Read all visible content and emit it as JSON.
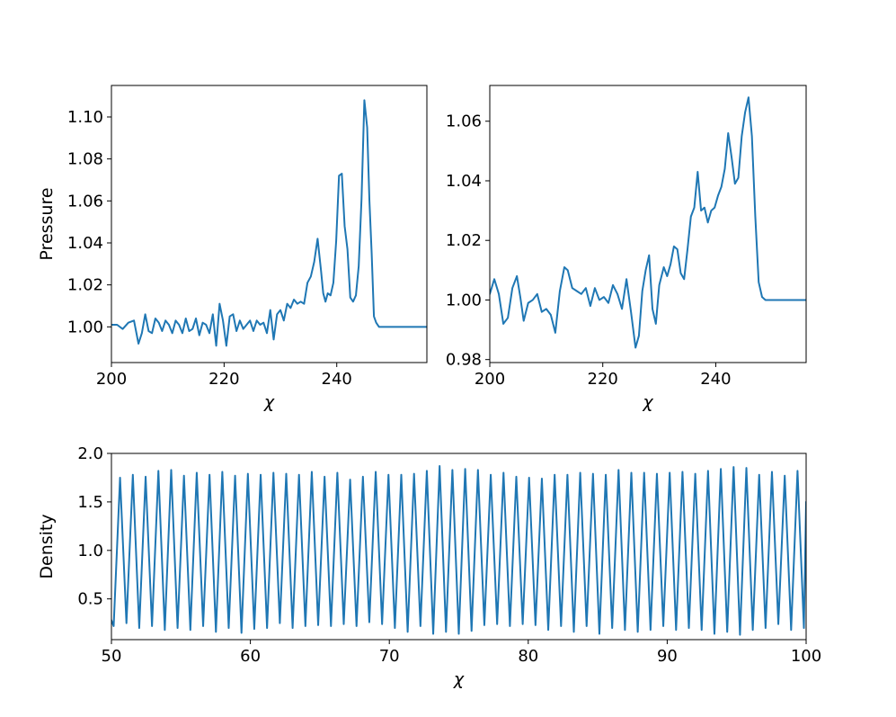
{
  "colors": {
    "series": "#1f77b4",
    "axes": "#000000",
    "background": "#ffffff"
  },
  "chart_data": [
    {
      "id": "top-left",
      "type": "line",
      "title": "",
      "xlabel": "χ",
      "ylabel": "Pressure",
      "xlim": [
        200,
        256
      ],
      "ylim": [
        0.983,
        1.115
      ],
      "xticks": [
        200,
        220,
        240
      ],
      "xtick_labels": [
        "200",
        "220",
        "240"
      ],
      "yticks": [
        1.0,
        1.02,
        1.04,
        1.06,
        1.08,
        1.1
      ],
      "ytick_labels": [
        "1.00",
        "1.02",
        "1.04",
        "1.06",
        "1.08",
        "1.10"
      ],
      "grid": false,
      "series": [
        {
          "x": [
            200,
            201,
            202,
            203,
            204,
            204.8,
            205.4,
            206,
            206.6,
            207.2,
            207.8,
            208.4,
            209,
            209.6,
            210.2,
            210.8,
            211.4,
            212,
            212.6,
            213.2,
            213.8,
            214.4,
            215,
            215.6,
            216.2,
            216.8,
            217.4,
            218,
            218.6,
            219.2,
            219.8,
            220.4,
            221,
            221.6,
            222.2,
            222.8,
            223.4,
            224,
            224.6,
            225.2,
            225.8,
            226.4,
            227,
            227.6,
            228.2,
            228.8,
            229.4,
            230,
            230.6,
            231.2,
            231.8,
            232.4,
            233,
            233.6,
            234.2,
            234.8,
            235.4,
            236,
            236.6,
            237.2,
            237.6,
            238,
            238.4,
            238.9,
            239.4,
            239.9,
            240.4,
            240.9,
            241.4,
            241.9,
            242.4,
            242.9,
            243.4,
            243.9,
            244.4,
            244.9,
            245.4,
            245.8,
            246.2,
            246.6,
            247,
            247.5,
            248,
            248.5,
            249,
            250,
            252,
            254,
            256
          ],
          "y": [
            1.001,
            1.001,
            0.999,
            1.002,
            1.003,
            0.992,
            0.997,
            1.006,
            0.998,
            0.997,
            1.004,
            1.002,
            0.998,
            1.003,
            1.001,
            0.997,
            1.003,
            1.001,
            0.997,
            1.004,
            0.998,
            0.999,
            1.004,
            0.996,
            1.002,
            1.001,
            0.997,
            1.006,
            0.991,
            1.011,
            1.003,
            0.991,
            1.005,
            1.006,
            0.998,
            1.003,
            0.999,
            1.001,
            1.003,
            0.998,
            1.003,
            1.001,
            1.002,
            0.997,
            1.008,
            0.994,
            1.006,
            1.008,
            1.003,
            1.011,
            1.009,
            1.013,
            1.011,
            1.012,
            1.011,
            1.021,
            1.024,
            1.031,
            1.042,
            1.027,
            1.016,
            1.012,
            1.016,
            1.015,
            1.021,
            1.041,
            1.072,
            1.073,
            1.048,
            1.037,
            1.014,
            1.012,
            1.015,
            1.029,
            1.061,
            1.108,
            1.095,
            1.06,
            1.035,
            1.005,
            1.002,
            1.0,
            1.0,
            1.0,
            1.0,
            1.0,
            1.0,
            1.0,
            1.0
          ]
        }
      ]
    },
    {
      "id": "top-right",
      "type": "line",
      "title": "",
      "xlabel": "χ",
      "ylabel": "",
      "xlim": [
        200,
        256
      ],
      "ylim": [
        0.979,
        1.072
      ],
      "xticks": [
        200,
        220,
        240
      ],
      "xtick_labels": [
        "200",
        "220",
        "240"
      ],
      "yticks": [
        0.98,
        1.0,
        1.02,
        1.04,
        1.06
      ],
      "ytick_labels": [
        "0.98",
        "1.00",
        "1.02",
        "1.04",
        "1.06"
      ],
      "grid": false,
      "series": [
        {
          "x": [
            200,
            200.8,
            201.6,
            202.4,
            203.2,
            204,
            204.8,
            205.4,
            206,
            206.8,
            207.6,
            208.4,
            209.2,
            210,
            210.8,
            211.6,
            212.4,
            213.2,
            213.8,
            214.6,
            215.4,
            216.2,
            217,
            217.8,
            218.6,
            219.4,
            220.2,
            221,
            221.8,
            222.6,
            223.4,
            224.2,
            225,
            225.8,
            226.4,
            227,
            227.6,
            228.2,
            228.8,
            229.4,
            230,
            230.8,
            231.4,
            232,
            232.6,
            233.2,
            233.8,
            234.4,
            235,
            235.6,
            236.2,
            236.8,
            237.4,
            238,
            238.6,
            239.2,
            239.8,
            240.4,
            241,
            241.6,
            242.2,
            242.8,
            243.4,
            244,
            244.6,
            245.2,
            245.8,
            246.4,
            247,
            247.6,
            248.2,
            248.8,
            250,
            252,
            254,
            256
          ],
          "y": [
            1.002,
            1.007,
            1.002,
            0.992,
            0.994,
            1.004,
            1.008,
            1.001,
            0.993,
            0.999,
            1.0,
            1.002,
            0.996,
            0.997,
            0.995,
            0.989,
            1.003,
            1.011,
            1.01,
            1.004,
            1.003,
            1.002,
            1.004,
            0.998,
            1.004,
            1.0,
            1.001,
            0.999,
            1.005,
            1.002,
            0.997,
            1.007,
            0.996,
            0.984,
            0.988,
            1.003,
            1.01,
            1.015,
            0.997,
            0.992,
            1.005,
            1.011,
            1.008,
            1.012,
            1.018,
            1.017,
            1.009,
            1.007,
            1.017,
            1.028,
            1.031,
            1.043,
            1.03,
            1.031,
            1.026,
            1.03,
            1.031,
            1.035,
            1.038,
            1.044,
            1.056,
            1.048,
            1.039,
            1.041,
            1.055,
            1.063,
            1.068,
            1.055,
            1.028,
            1.006,
            1.001,
            1.0,
            1.0,
            1.0,
            1.0,
            1.0
          ]
        }
      ]
    },
    {
      "id": "bottom",
      "type": "line",
      "title": "",
      "xlabel": "χ",
      "ylabel": "Density",
      "xlim": [
        50,
        100
      ],
      "ylim": [
        0.08,
        2.0
      ],
      "xticks": [
        50,
        60,
        70,
        80,
        90,
        100
      ],
      "xtick_labels": [
        "50",
        "60",
        "70",
        "80",
        "90",
        "100"
      ],
      "yticks": [
        0.5,
        1.0,
        1.5,
        2.0
      ],
      "ytick_labels": [
        "0.5",
        "1.0",
        "1.5",
        "2.0"
      ],
      "grid": false,
      "series": [
        {
          "x": [
            50,
            50.16,
            50.62,
            51.08,
            51.54,
            52,
            52.46,
            52.92,
            53.38,
            53.84,
            54.3,
            54.76,
            55.22,
            55.68,
            56.14,
            56.6,
            57.06,
            57.52,
            57.98,
            58.44,
            58.9,
            59.36,
            59.82,
            60.28,
            60.74,
            61.2,
            61.66,
            62.12,
            62.58,
            63.04,
            63.5,
            63.96,
            64.42,
            64.88,
            65.34,
            65.8,
            66.26,
            66.72,
            67.18,
            67.64,
            68.1,
            68.56,
            69.02,
            69.48,
            69.94,
            70.4,
            70.86,
            71.32,
            71.78,
            72.24,
            72.7,
            73.16,
            73.62,
            74.08,
            74.54,
            75,
            75.46,
            75.92,
            76.38,
            76.84,
            77.3,
            77.76,
            78.22,
            78.68,
            79.14,
            79.6,
            80.06,
            80.52,
            80.98,
            81.44,
            81.9,
            82.36,
            82.82,
            83.28,
            83.74,
            84.2,
            84.66,
            85.12,
            85.58,
            86.04,
            86.5,
            86.96,
            87.42,
            87.88,
            88.34,
            88.8,
            89.26,
            89.72,
            90.18,
            90.64,
            91.1,
            91.56,
            92.02,
            92.48,
            92.94,
            93.4,
            93.86,
            94.32,
            94.78,
            95.24,
            95.7,
            96.16,
            96.62,
            97.08,
            97.54,
            98,
            98.46,
            98.92,
            99.38,
            99.84,
            100
          ],
          "y": [
            0.28,
            0.22,
            1.75,
            0.25,
            1.78,
            0.2,
            1.76,
            0.22,
            1.82,
            0.18,
            1.83,
            0.2,
            1.77,
            0.18,
            1.8,
            0.22,
            1.78,
            0.16,
            1.81,
            0.2,
            1.77,
            0.15,
            1.79,
            0.19,
            1.78,
            0.2,
            1.8,
            0.25,
            1.79,
            0.2,
            1.78,
            0.22,
            1.81,
            0.23,
            1.76,
            0.22,
            1.8,
            0.24,
            1.73,
            0.22,
            1.76,
            0.26,
            1.81,
            0.24,
            1.78,
            0.2,
            1.78,
            0.16,
            1.79,
            0.22,
            1.82,
            0.14,
            1.87,
            0.16,
            1.83,
            0.14,
            1.84,
            0.17,
            1.83,
            0.23,
            1.78,
            0.24,
            1.8,
            0.22,
            1.76,
            0.24,
            1.75,
            0.23,
            1.74,
            0.18,
            1.78,
            0.22,
            1.78,
            0.16,
            1.8,
            0.22,
            1.79,
            0.14,
            1.78,
            0.2,
            1.83,
            0.18,
            1.8,
            0.16,
            1.8,
            0.18,
            1.79,
            0.22,
            1.8,
            0.18,
            1.81,
            0.2,
            1.79,
            0.18,
            1.82,
            0.14,
            1.84,
            0.16,
            1.86,
            0.13,
            1.85,
            0.18,
            1.78,
            0.2,
            1.81,
            0.24,
            1.77,
            0.18,
            1.82,
            0.2,
            1.5
          ]
        }
      ]
    }
  ]
}
